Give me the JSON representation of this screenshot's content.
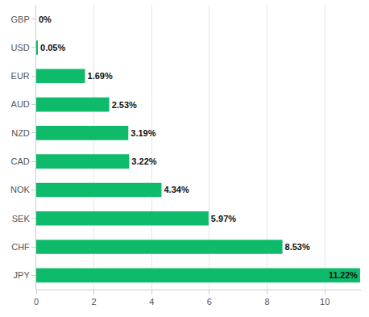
{
  "chart_data": {
    "type": "bar",
    "orientation": "horizontal",
    "categories": [
      "GBP",
      "USD",
      "EUR",
      "AUD",
      "NZD",
      "CAD",
      "NOK",
      "SEK",
      "CHF",
      "JPY"
    ],
    "values": [
      0,
      0.05,
      1.69,
      2.53,
      3.19,
      3.22,
      4.34,
      5.97,
      8.53,
      11.22
    ],
    "value_labels": [
      "0%",
      "0.05%",
      "1.69%",
      "2.53%",
      "3.19%",
      "3.22%",
      "4.34%",
      "5.97%",
      "8.53%",
      "11.22%"
    ],
    "color": "#0dbb6b",
    "xlim": [
      0,
      11.25
    ],
    "xticks": [
      0,
      2,
      4,
      6,
      8,
      10
    ],
    "grid": true,
    "data_labels": true
  }
}
